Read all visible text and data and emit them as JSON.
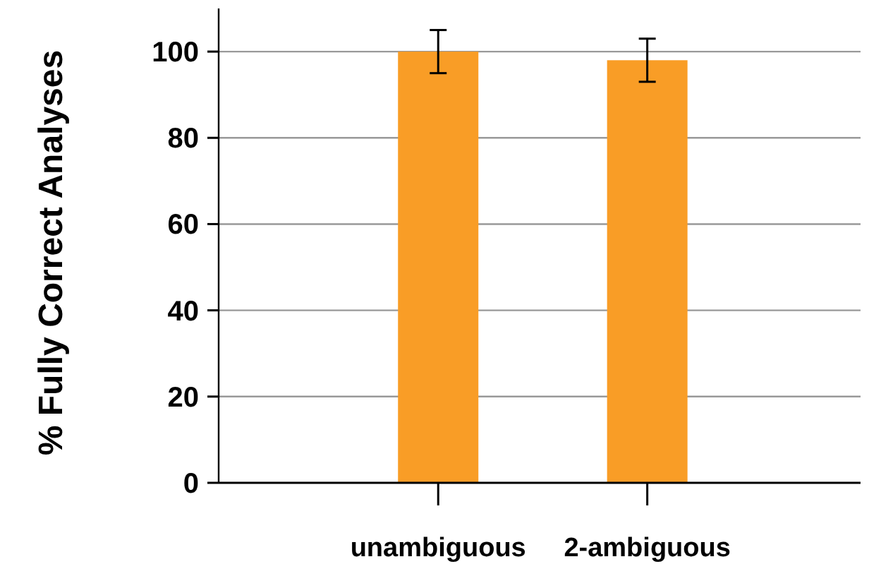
{
  "chart_data": {
    "type": "bar",
    "ylabel": "% Fully Correct Analyses",
    "categories": [
      "unambiguous",
      "2-ambiguous"
    ],
    "values": [
      100,
      98
    ],
    "errors": [
      5,
      5
    ],
    "color": "#f99d26",
    "ylim": [
      0,
      110
    ],
    "yticks": [
      0,
      20,
      40,
      60,
      80,
      100
    ],
    "grid": "y"
  }
}
